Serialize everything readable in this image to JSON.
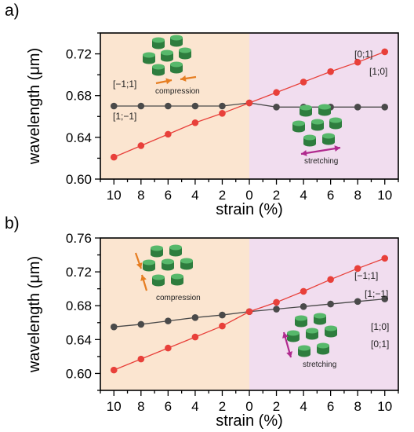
{
  "chart_data": [
    {
      "panel": "a)",
      "type": "line",
      "xlabel": "strain (%)",
      "ylabel": "wavelength (μm)",
      "xtick_labels": [
        "10",
        "8",
        "6",
        "4",
        "2",
        "0",
        "2",
        "4",
        "6",
        "8",
        "10"
      ],
      "x": [
        -10,
        -8,
        -6,
        -4,
        -2,
        0,
        2,
        4,
        6,
        8,
        10
      ],
      "xlim": [
        -11,
        11
      ],
      "ylim": [
        0.6,
        0.74
      ],
      "yticks": [
        "0.60",
        "0.64",
        "0.68",
        "0.72"
      ],
      "ytick_values": [
        0.6,
        0.64,
        0.68,
        0.72
      ],
      "regions": [
        {
          "x_range": [
            -11,
            0
          ],
          "color": "#fbe5d0"
        },
        {
          "x_range": [
            0,
            11
          ],
          "color": "#f1ddef"
        }
      ],
      "series": [
        {
          "color": "#e8403a",
          "values": [
            0.621,
            0.632,
            0.643,
            0.654,
            0.663,
            0.673,
            0.683,
            0.693,
            0.703,
            0.712,
            0.722
          ]
        },
        {
          "color": "#4a4a4a",
          "values": [
            0.67,
            0.67,
            0.67,
            0.67,
            0.67,
            0.673,
            0.669,
            0.669,
            0.669,
            0.669,
            0.669
          ]
        }
      ],
      "labels": {
        "top_left": "[−1;1]",
        "bottom_left": "[1;−1]",
        "top_right_1": "[0;1]",
        "top_right_2": "[1;0]",
        "compression": "compression",
        "stretching": "stretching"
      }
    },
    {
      "panel": "b)",
      "type": "line",
      "xlabel": "strain (%)",
      "ylabel": "wavelength (μm)",
      "xtick_labels": [
        "10",
        "8",
        "6",
        "4",
        "2",
        "0",
        "2",
        "4",
        "6",
        "8",
        "10"
      ],
      "x": [
        -10,
        -8,
        -6,
        -4,
        -2,
        0,
        2,
        4,
        6,
        8,
        10
      ],
      "xlim": [
        -11,
        11
      ],
      "ylim": [
        0.58,
        0.76
      ],
      "yticks": [
        "0.60",
        "0.64",
        "0.68",
        "0.72",
        "0.76"
      ],
      "ytick_values": [
        0.6,
        0.64,
        0.68,
        0.72,
        0.76
      ],
      "regions": [
        {
          "x_range": [
            -11,
            0
          ],
          "color": "#fbe5d0"
        },
        {
          "x_range": [
            0,
            11
          ],
          "color": "#f1ddef"
        }
      ],
      "series": [
        {
          "color": "#e8403a",
          "values": [
            0.604,
            0.617,
            0.63,
            0.643,
            0.656,
            0.673,
            0.684,
            0.697,
            0.711,
            0.724,
            0.736
          ]
        },
        {
          "color": "#4a4a4a",
          "values": [
            0.655,
            0.658,
            0.662,
            0.666,
            0.669,
            0.673,
            0.676,
            0.679,
            0.682,
            0.685,
            0.688
          ]
        }
      ],
      "labels": {
        "top_right_1": "[−1;1]",
        "top_right_2": "[1;−1]",
        "bottom_right_1": "[1;0]",
        "bottom_right_2": "[0;1]",
        "compression": "compression",
        "stretching": "stretching"
      }
    }
  ]
}
